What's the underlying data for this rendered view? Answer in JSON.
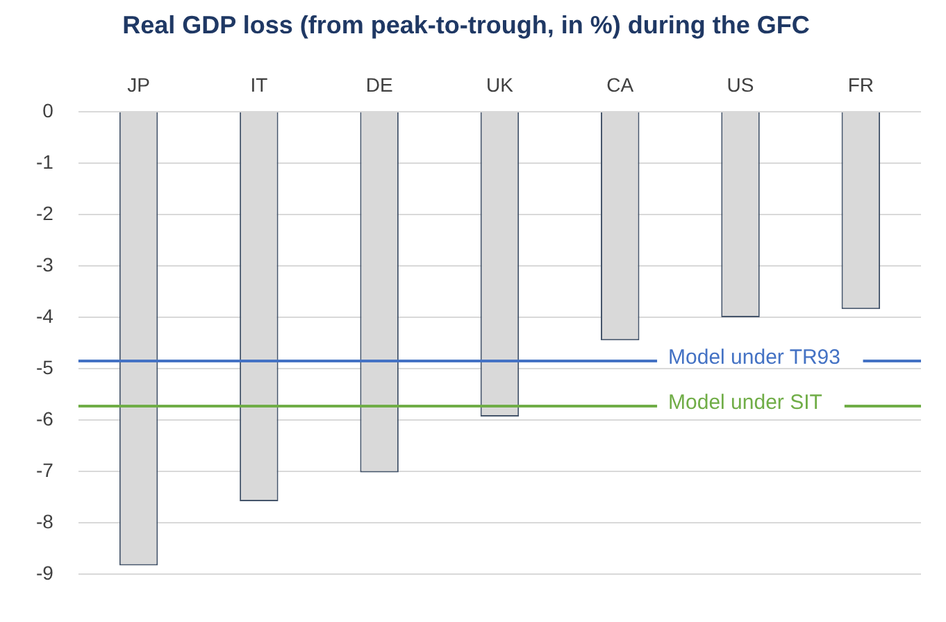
{
  "chart_data": {
    "type": "bar",
    "title": "Real GDP loss (from peak-to-trough, in %) during the GFC",
    "categories": [
      "JP",
      "IT",
      "DE",
      "UK",
      "CA",
      "US",
      "FR"
    ],
    "values": [
      -8.83,
      -7.58,
      -7.02,
      -5.93,
      -4.45,
      -4.0,
      -3.84
    ],
    "color": "#d9d9d9",
    "ylim": [
      -9,
      0
    ],
    "yticks": [
      -9,
      -8,
      -7,
      -6,
      -5,
      -4,
      -3,
      -2,
      -1,
      0
    ],
    "grid": "y",
    "legend": false,
    "ref_lines": [
      {
        "axis": "y",
        "value": -4.85,
        "label": "Model under TR93",
        "color": "#4472c4"
      },
      {
        "axis": "y",
        "value": -5.73,
        "label": "Model under SIT",
        "color": "#70ad47"
      }
    ]
  }
}
